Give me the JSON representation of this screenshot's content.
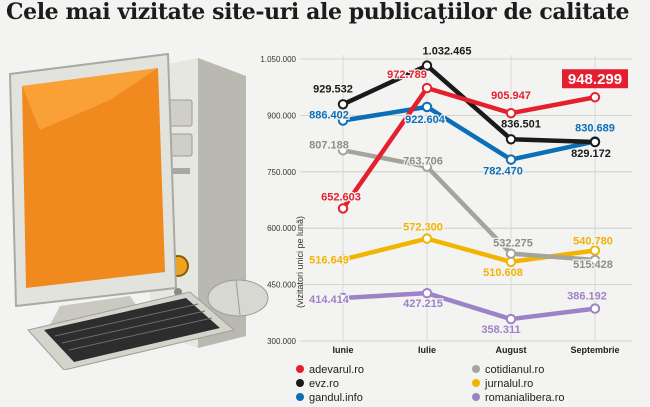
{
  "chart_data": {
    "type": "line",
    "title": "Cele mai vizitate site-uri ale publicaţiilor de calitate",
    "ylabel": "(vizitatori unici pe lună)",
    "categories": [
      "Iunie",
      "Iulie",
      "August",
      "Septembrie"
    ],
    "ylim": [
      300000,
      1050000
    ],
    "yticks": [
      300000,
      450000,
      600000,
      750000,
      900000,
      1050000
    ],
    "ytick_labels": [
      "300.000",
      "450.000",
      "600.000",
      "750.000",
      "900.000",
      "1.050.000"
    ],
    "legend_position": "bottom",
    "series": [
      {
        "name": "adevarul.ro",
        "color": "#e5202e",
        "values": [
          652603,
          972789,
          905947,
          948299
        ],
        "labels": [
          "652.603",
          "972.789",
          "905.947",
          "948.299"
        ]
      },
      {
        "name": "evz.ro",
        "color": "#1a1a1a",
        "values": [
          929532,
          1032465,
          836501,
          829172
        ],
        "labels": [
          "929.532",
          "1.032.465",
          "836.501",
          "829.172"
        ]
      },
      {
        "name": "gandul.info",
        "color": "#0b6fb8",
        "values": [
          886402,
          922604,
          782470,
          830689
        ],
        "labels": [
          "886.402",
          "922.604",
          "782.470",
          "830.689"
        ]
      },
      {
        "name": "cotidianul.ro",
        "color": "#a5a39a",
        "values": [
          807188,
          763706,
          532275,
          515428
        ],
        "labels": [
          "807.188",
          "763.706",
          "532.275",
          "515.428"
        ]
      },
      {
        "name": "jurnalul.ro",
        "color": "#f1b400",
        "values": [
          516649,
          572300,
          510608,
          540780
        ],
        "labels": [
          "516.649",
          "572.300",
          "510.608",
          "540.780"
        ]
      },
      {
        "name": "romanialibera.ro",
        "color": "#9c82c6",
        "values": [
          414414,
          427215,
          358311,
          386192
        ],
        "labels": [
          "414.414",
          "427.215",
          "358.311",
          "386.192"
        ]
      }
    ]
  }
}
